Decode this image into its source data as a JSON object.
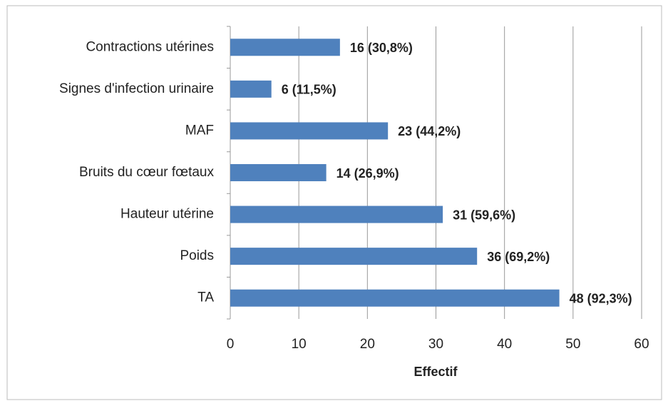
{
  "chart_data": {
    "type": "bar",
    "orientation": "horizontal",
    "categories": [
      "Contractions utérines",
      "Signes d'infection urinaire",
      "MAF",
      "Bruits du cœur fœtaux",
      "Hauteur utérine",
      "Poids",
      "TA"
    ],
    "values": [
      16,
      6,
      23,
      14,
      31,
      36,
      48
    ],
    "value_labels": [
      "16 (30,8%)",
      "6 (11,5%)",
      "23 (44,2%)",
      "14 (26,9%)",
      "31 (59,6%)",
      "36 (69,2%)",
      "48 (92,3%)"
    ],
    "color": "#4f81bd",
    "xlabel": "Effectif",
    "xlim": [
      0,
      60
    ],
    "xticks": [
      0,
      10,
      20,
      30,
      40,
      50,
      60
    ],
    "grid": true
  }
}
